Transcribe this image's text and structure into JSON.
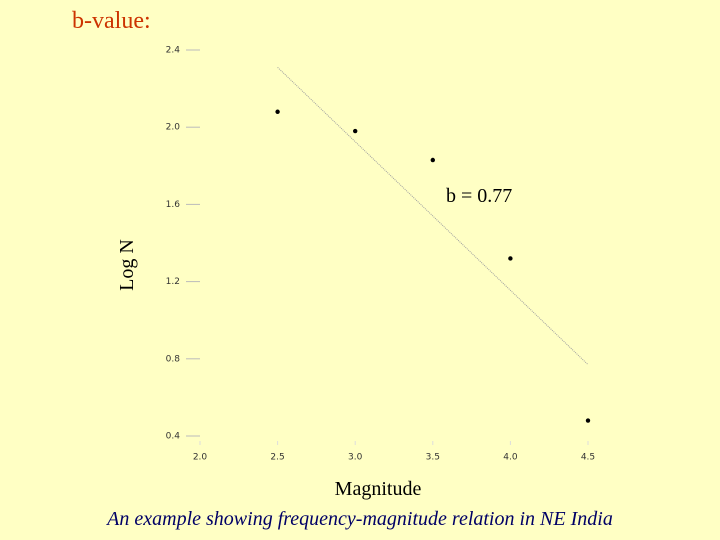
{
  "chart_data": {
    "type": "scatter",
    "title": "b-value:",
    "annotation": "b = 0.77",
    "xlabel": "Magnitude",
    "ylabel": "Log N",
    "caption": "An example showing frequency-magnitude relation in NE India",
    "series": [
      {
        "type": "scatter",
        "color": "#000000",
        "x": [
          2.5,
          3.0,
          3.5,
          4.0,
          4.5
        ],
        "values": [
          2.08,
          1.98,
          1.83,
          1.32,
          0.48
        ]
      },
      {
        "type": "line",
        "color": "#a0a0a0",
        "x": [
          2.5,
          4.5
        ],
        "values": [
          2.31,
          0.77
        ]
      }
    ],
    "xlim": [
      2.0,
      4.5
    ],
    "ylim": [
      0.4,
      2.4
    ],
    "xticks": [
      {
        "value": 2,
        "label": "2.0"
      },
      2.5,
      {
        "value": 3,
        "label": "3.0"
      },
      3.5,
      {
        "value": 4,
        "label": "4.0"
      },
      4.5
    ],
    "yticks": [
      0.4,
      0.8,
      1.2,
      1.6,
      {
        "value": 2,
        "label": "2.0"
      },
      2.4
    ]
  }
}
